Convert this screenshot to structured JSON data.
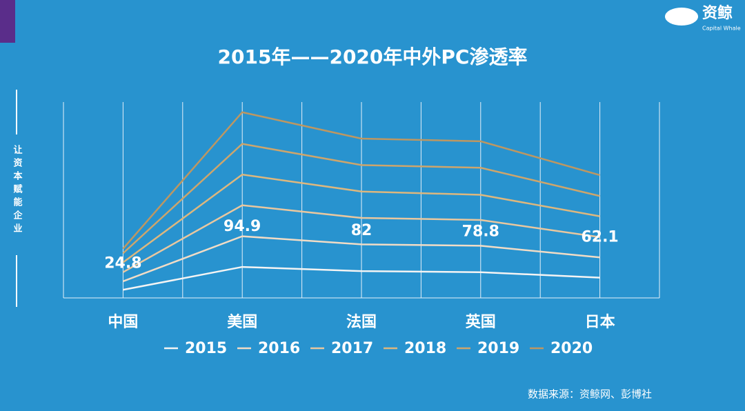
{
  "chart_data": {
    "type": "line",
    "stacked": true,
    "title": "2015年——2020年中外PC渗透率",
    "categories": [
      "中国",
      "美国",
      "法国",
      "英国",
      "日本"
    ],
    "series": [
      {
        "name": "2015",
        "color": "#f4f4f4",
        "values": [
          24.8,
          94.9,
          82,
          78.8,
          62.1
        ],
        "show_labels": true
      },
      {
        "name": "2016",
        "color": "#f1dcc6",
        "values": [
          26,
          94,
          82,
          81,
          62
        ]
      },
      {
        "name": "2017",
        "color": "#e9c79f",
        "values": [
          28,
          95,
          81,
          79,
          62
        ]
      },
      {
        "name": "2018",
        "color": "#ddb77e",
        "values": [
          30,
          94,
          81,
          77,
          64
        ]
      },
      {
        "name": "2019",
        "color": "#cda56c",
        "values": [
          28,
          94,
          81,
          83,
          62
        ]
      },
      {
        "name": "2020",
        "color": "#bd9762",
        "values": [
          14,
          97,
          81,
          81,
          64
        ]
      }
    ],
    "ylim": [
      0,
      600
    ],
    "grid": "x"
  },
  "side_text": "让资本赋能企业",
  "logo_name": "资鲸",
  "logo_subtitle": "Capital Whale",
  "source": "数据来源：资鲸网、彭博社"
}
